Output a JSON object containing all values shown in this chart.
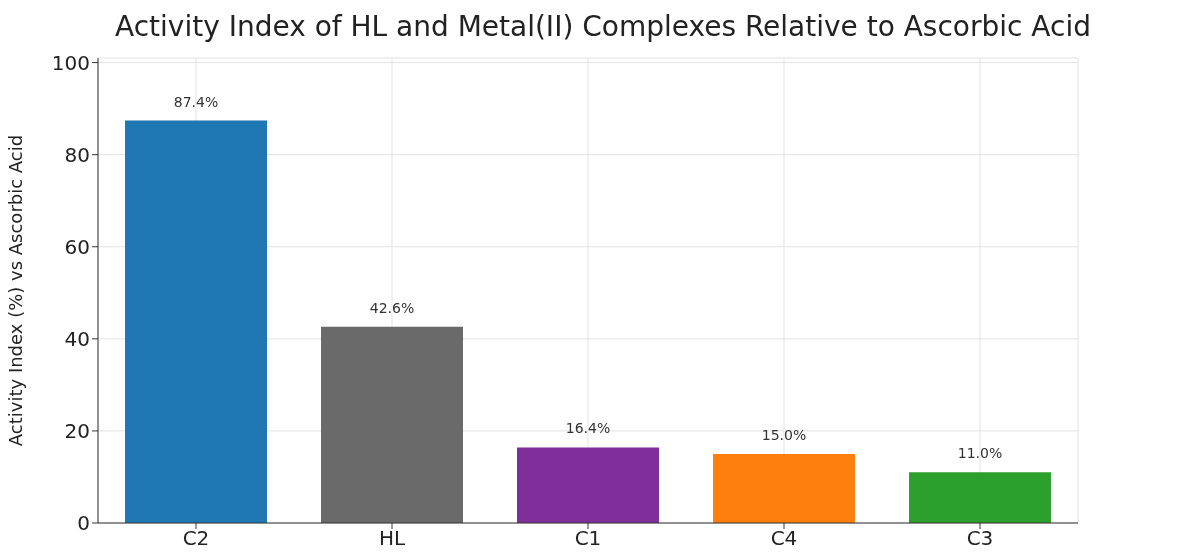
{
  "chart_data": {
    "type": "bar",
    "title": "Activity Index of HL and Metal(II) Complexes Relative to Ascorbic Acid",
    "ylabel": "Activity Index (%) vs Ascorbic Acid",
    "categories": [
      "C2",
      "HL",
      "C1",
      "C4",
      "C3"
    ],
    "values": [
      87.4,
      42.6,
      16.4,
      15.0,
      11.0
    ],
    "colors": [
      "#1f77b4",
      "#6a6a6a",
      "#7f2f9a",
      "#ff7f0e",
      "#2ca02c"
    ],
    "value_labels": [
      "87.4%",
      "42.6%",
      "16.4%",
      "15.0%",
      "11.0%"
    ],
    "ylim": [
      0,
      101
    ],
    "yticks": [
      0,
      20,
      40,
      60,
      80,
      100
    ],
    "grid": true
  }
}
